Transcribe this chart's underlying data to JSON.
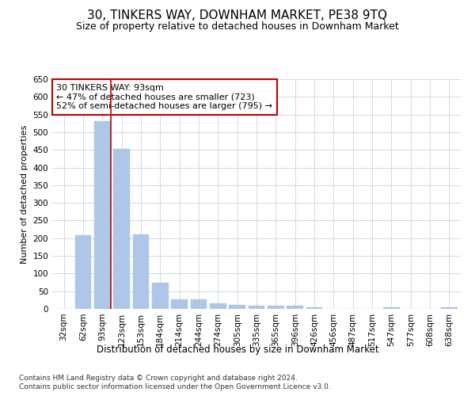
{
  "title": "30, TINKERS WAY, DOWNHAM MARKET, PE38 9TQ",
  "subtitle": "Size of property relative to detached houses in Downham Market",
  "xlabel": "Distribution of detached houses by size in Downham Market",
  "ylabel": "Number of detached properties",
  "categories": [
    "32sqm",
    "62sqm",
    "93sqm",
    "123sqm",
    "153sqm",
    "184sqm",
    "214sqm",
    "244sqm",
    "274sqm",
    "305sqm",
    "335sqm",
    "365sqm",
    "396sqm",
    "426sqm",
    "456sqm",
    "487sqm",
    "517sqm",
    "547sqm",
    "577sqm",
    "608sqm",
    "638sqm"
  ],
  "values": [
    0,
    208,
    532,
    452,
    210,
    75,
    27,
    27,
    15,
    12,
    10,
    10,
    8,
    4,
    0,
    0,
    0,
    4,
    0,
    0,
    4
  ],
  "bar_color": "#aec6e8",
  "bar_edge_color": "#aec6e8",
  "highlight_index": 2,
  "highlight_color": "#c00000",
  "ylim": [
    0,
    650
  ],
  "yticks": [
    0,
    50,
    100,
    150,
    200,
    250,
    300,
    350,
    400,
    450,
    500,
    550,
    600,
    650
  ],
  "annotation_text": "30 TINKERS WAY: 93sqm\n← 47% of detached houses are smaller (723)\n52% of semi-detached houses are larger (795) →",
  "footnote1": "Contains HM Land Registry data © Crown copyright and database right 2024.",
  "footnote2": "Contains public sector information licensed under the Open Government Licence v3.0.",
  "background_color": "#ffffff",
  "grid_color": "#d0d8e8",
  "title_fontsize": 11,
  "subtitle_fontsize": 9,
  "axis_fontsize": 8,
  "tick_fontsize": 7.5
}
